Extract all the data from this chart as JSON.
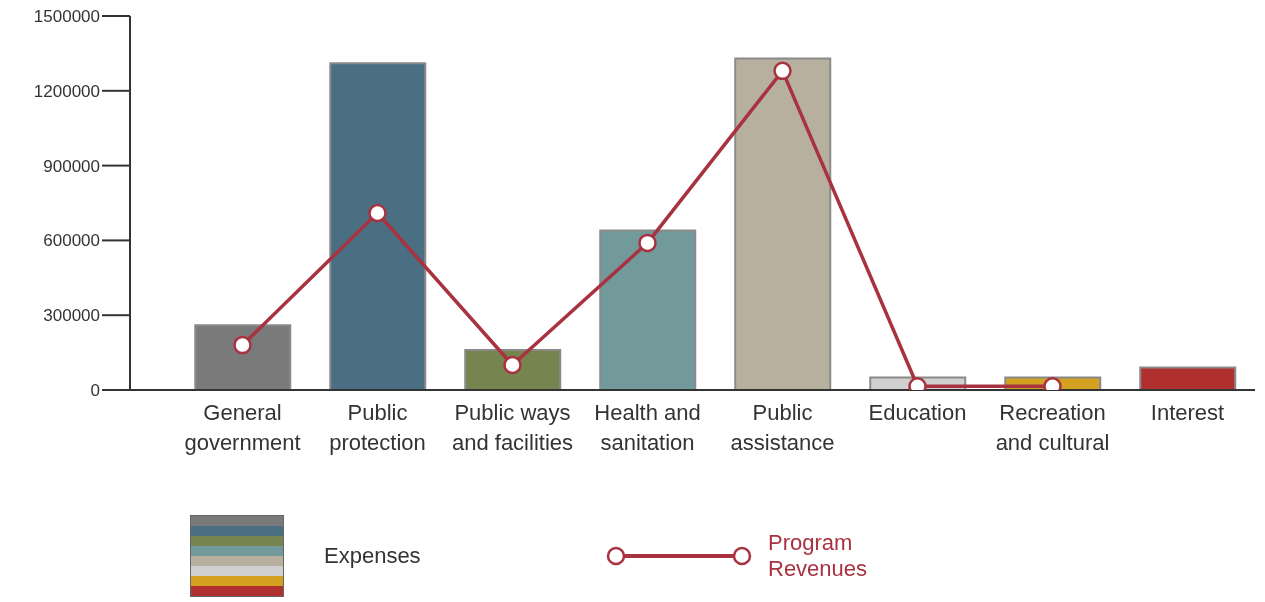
{
  "chart_data": {
    "type": "bar",
    "categories": [
      "General government",
      "Public protection",
      "Public ways and facilities",
      "Health and sanitation",
      "Public assistance",
      "Education",
      "Recreation and cultural",
      "Interest"
    ],
    "series": [
      {
        "name": "Expenses",
        "colors": [
          "#7a7a7a",
          "#4a6f82",
          "#76844f",
          "#739a9a",
          "#b8b09e",
          "#d0d0d0",
          "#d4a020",
          "#b03030"
        ],
        "values": [
          260000,
          1310000,
          160000,
          640000,
          1330000,
          50000,
          50000,
          90000
        ]
      },
      {
        "name": "Program Revenues",
        "type": "line",
        "color": "#a83240",
        "values": [
          180000,
          710000,
          100000,
          590000,
          1280000,
          15000,
          15000,
          null
        ]
      }
    ],
    "ylim": [
      0,
      1500000
    ],
    "yticks": [
      0,
      300000,
      600000,
      900000,
      1200000,
      1500000
    ],
    "grid": false,
    "legend": "bottom",
    "marker": "circle"
  }
}
